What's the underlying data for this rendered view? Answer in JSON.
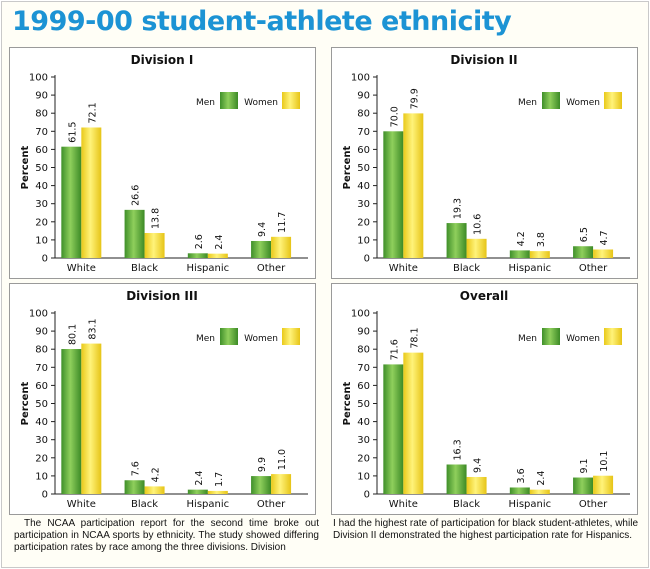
{
  "title": "1999-00 student-athlete ethnicity",
  "legend": {
    "men": "Men",
    "women": "Women"
  },
  "colors": {
    "title": "#1c93d4",
    "men": "#5aa838",
    "women": "#f5dd2a"
  },
  "ylabel": "Percent",
  "description": {
    "left": "The NCAA participation report for the second time broke out participation in NCAA sports by ethnicity. The study showed differing participation rates by race among the three divisions. Division",
    "right": "I had the highest rate of participation for black student-athletes, while Division II demonstrated the highest participation rate for Hispanics."
  },
  "chart_data": [
    {
      "type": "bar",
      "title": "Division I",
      "categories": [
        "White",
        "Black",
        "Hispanic",
        "Other"
      ],
      "series": [
        {
          "name": "Men",
          "values": [
            61.5,
            26.6,
            2.6,
            9.4
          ],
          "labels": [
            "61.5",
            "26.6",
            "2.6",
            "9.4"
          ]
        },
        {
          "name": "Women",
          "values": [
            72.1,
            13.8,
            2.4,
            11.7
          ],
          "labels": [
            "72.1",
            "13.8",
            "2.4",
            "11.7"
          ]
        }
      ],
      "ylabel": "Percent",
      "ylim": [
        0,
        100
      ],
      "yticks": [
        "0",
        "10",
        "20",
        "30",
        "40",
        "50",
        "60",
        "70",
        "80",
        "90",
        "100"
      ],
      "legend": "top-right"
    },
    {
      "type": "bar",
      "title": "Division II",
      "categories": [
        "White",
        "Black",
        "Hispanic",
        "Other"
      ],
      "series": [
        {
          "name": "Men",
          "values": [
            70.0,
            19.3,
            4.2,
            6.5
          ],
          "labels": [
            "70.0",
            "19.3",
            "4.2",
            "6.5"
          ]
        },
        {
          "name": "Women",
          "values": [
            79.9,
            10.6,
            3.8,
            4.7
          ],
          "labels": [
            "79.9",
            "10.6",
            "3.8",
            "4.7"
          ]
        }
      ],
      "ylabel": "Percent",
      "ylim": [
        0,
        100
      ],
      "yticks": [
        "0",
        "10",
        "20",
        "30",
        "40",
        "50",
        "60",
        "70",
        "80",
        "90",
        "100"
      ],
      "legend": "top-right"
    },
    {
      "type": "bar",
      "title": "Division III",
      "categories": [
        "White",
        "Black",
        "Hispanic",
        "Other"
      ],
      "series": [
        {
          "name": "Men",
          "values": [
            80.1,
            7.6,
            2.4,
            9.9
          ],
          "labels": [
            "80.1",
            "7.6",
            "2.4",
            "9.9"
          ]
        },
        {
          "name": "Women",
          "values": [
            83.1,
            4.2,
            1.7,
            11.0
          ],
          "labels": [
            "83.1",
            "4.2",
            "1.7",
            "11.0"
          ]
        }
      ],
      "ylabel": "Percent",
      "ylim": [
        0,
        100
      ],
      "yticks": [
        "0",
        "10",
        "20",
        "30",
        "40",
        "50",
        "60",
        "70",
        "80",
        "90",
        "100"
      ],
      "legend": "top-right"
    },
    {
      "type": "bar",
      "title": "Overall",
      "categories": [
        "White",
        "Black",
        "Hispanic",
        "Other"
      ],
      "series": [
        {
          "name": "Men",
          "values": [
            71.6,
            16.3,
            3.6,
            9.1
          ],
          "labels": [
            "71.6",
            "16.3",
            "3.6",
            "9.1"
          ]
        },
        {
          "name": "Women",
          "values": [
            78.1,
            9.4,
            2.4,
            10.1
          ],
          "labels": [
            "78.1",
            "9.4",
            "2.4",
            "10.1"
          ]
        }
      ],
      "ylabel": "Percent",
      "ylim": [
        0,
        100
      ],
      "yticks": [
        "0",
        "10",
        "20",
        "30",
        "40",
        "50",
        "60",
        "70",
        "80",
        "90",
        "100"
      ],
      "legend": "top-right"
    }
  ]
}
